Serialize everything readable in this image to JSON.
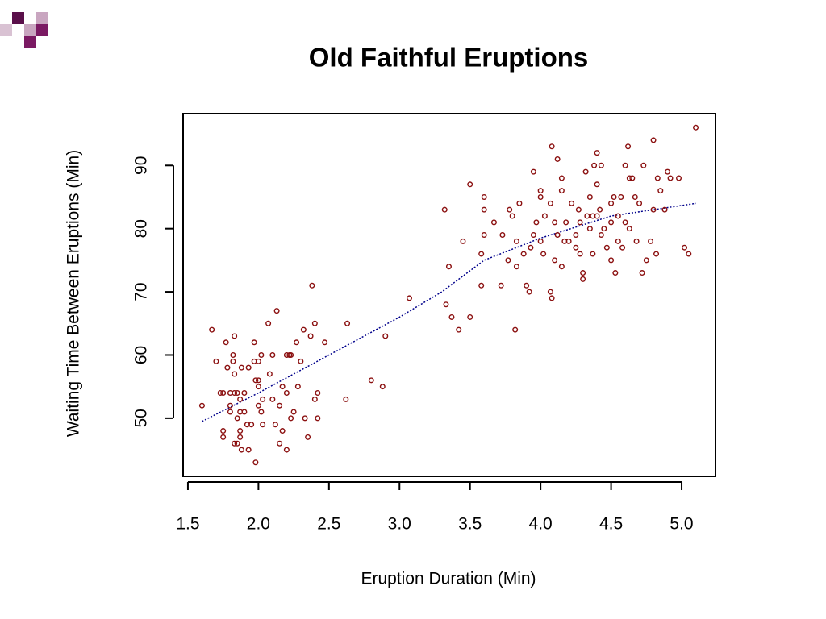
{
  "chart_data": {
    "type": "scatter",
    "title": "Old Faithful Eruptions",
    "xlabel": "Eruption Duration (Min)",
    "ylabel": "Waiting Time Between Eruptions (Min)",
    "color": "#8b1010",
    "x": [
      1.6,
      1.67,
      1.7,
      1.73,
      1.75,
      1.75,
      1.75,
      1.77,
      1.78,
      1.8,
      1.8,
      1.8,
      1.82,
      1.82,
      1.83,
      1.83,
      1.83,
      1.83,
      1.85,
      1.85,
      1.85,
      1.87,
      1.87,
      1.87,
      1.87,
      1.88,
      1.88,
      1.9,
      1.9,
      1.92,
      1.93,
      1.93,
      1.95,
      1.97,
      1.97,
      1.98,
      1.98,
      2.0,
      2.0,
      2.0,
      2.0,
      2.02,
      2.02,
      2.03,
      2.03,
      2.07,
      2.08,
      2.1,
      2.1,
      2.12,
      2.13,
      2.15,
      2.15,
      2.17,
      2.17,
      2.2,
      2.2,
      2.2,
      2.22,
      2.23,
      2.23,
      2.25,
      2.27,
      2.28,
      2.3,
      2.32,
      2.33,
      2.35,
      2.37,
      2.38,
      2.4,
      2.4,
      2.42,
      2.42,
      2.47,
      2.62,
      2.63,
      2.8,
      2.88,
      2.9,
      3.07,
      3.32,
      3.33,
      3.35,
      3.37,
      3.42,
      3.45,
      3.5,
      3.5,
      3.58,
      3.58,
      3.6,
      3.6,
      3.6,
      3.67,
      3.72,
      3.73,
      3.77,
      3.78,
      3.8,
      3.82,
      3.83,
      3.83,
      3.85,
      3.88,
      3.9,
      3.92,
      3.93,
      3.95,
      3.95,
      3.97,
      4.0,
      4.0,
      4.0,
      4.02,
      4.03,
      4.07,
      4.07,
      4.08,
      4.08,
      4.1,
      4.1,
      4.12,
      4.12,
      4.15,
      4.15,
      4.17,
      4.18,
      4.2,
      4.22,
      4.25,
      4.25,
      4.27,
      4.28,
      4.3,
      4.3,
      4.32,
      4.33,
      4.35,
      4.35,
      4.37,
      4.37,
      4.38,
      4.4,
      4.4,
      4.42,
      4.43,
      4.43,
      4.45,
      4.47,
      4.5,
      4.5,
      4.5,
      4.52,
      4.53,
      4.55,
      4.57,
      4.58,
      4.6,
      4.6,
      4.62,
      4.63,
      4.65,
      4.67,
      4.68,
      4.7,
      4.72,
      4.73,
      4.75,
      4.78,
      4.8,
      4.8,
      4.82,
      4.83,
      4.85,
      4.88,
      4.9,
      4.92,
      4.98,
      5.02,
      5.05,
      5.1,
      4.4,
      4.28,
      4.55,
      4.15,
      4.63
    ],
    "values": [
      52,
      64,
      59,
      54,
      54,
      48,
      47,
      62,
      58,
      54,
      52,
      51,
      60,
      59,
      63,
      57,
      54,
      46,
      46,
      54,
      50,
      53,
      51,
      48,
      47,
      45,
      58,
      54,
      51,
      49,
      58,
      45,
      49,
      62,
      59,
      56,
      43,
      59,
      56,
      55,
      52,
      60,
      51,
      53,
      49,
      65,
      57,
      60,
      53,
      49,
      67,
      46,
      52,
      48,
      55,
      60,
      54,
      45,
      60,
      60,
      50,
      51,
      62,
      55,
      59,
      64,
      50,
      47,
      63,
      71,
      65,
      53,
      54,
      50,
      62,
      53,
      65,
      56,
      55,
      63,
      69,
      83,
      68,
      74,
      66,
      64,
      78,
      87,
      66,
      71,
      76,
      85,
      79,
      83,
      81,
      71,
      79,
      75,
      83,
      82,
      64,
      78,
      74,
      84,
      76,
      71,
      70,
      77,
      79,
      89,
      81,
      86,
      85,
      78,
      76,
      82,
      84,
      70,
      93,
      69,
      81,
      75,
      91,
      79,
      88,
      86,
      78,
      81,
      78,
      84,
      79,
      77,
      83,
      81,
      73,
      72,
      89,
      82,
      85,
      80,
      76,
      82,
      90,
      92,
      87,
      83,
      79,
      90,
      80,
      77,
      84,
      81,
      75,
      85,
      73,
      78,
      85,
      77,
      90,
      81,
      93,
      80,
      88,
      85,
      78,
      84,
      73,
      90,
      75,
      78,
      94,
      83,
      76,
      88,
      86,
      83,
      89,
      88,
      88,
      77,
      76,
      96,
      82,
      76,
      82,
      74,
      88
    ],
    "fit": {
      "color": "#00008b",
      "x": [
        1.6,
        2.0,
        2.5,
        3.0,
        3.3,
        3.6,
        4.0,
        4.5,
        5.1
      ],
      "values": [
        49.5,
        54,
        60,
        66,
        70,
        75,
        78.5,
        82,
        84
      ]
    },
    "xlim": [
      1.466,
      5.24
    ],
    "ylim": [
      40.8,
      98.2
    ],
    "xticks": [
      {
        "value": 1.5,
        "label": "1.5"
      },
      {
        "value": 2,
        "label": "2.0"
      },
      {
        "value": 2.5,
        "label": "2.5"
      },
      {
        "value": 3,
        "label": "3.0"
      },
      {
        "value": 3.5,
        "label": "3.5"
      },
      {
        "value": 4,
        "label": "4.0"
      },
      {
        "value": 4.5,
        "label": "4.5"
      },
      {
        "value": 5,
        "label": "5.0"
      }
    ],
    "yticks": [
      50,
      60,
      70,
      80,
      90
    ]
  }
}
